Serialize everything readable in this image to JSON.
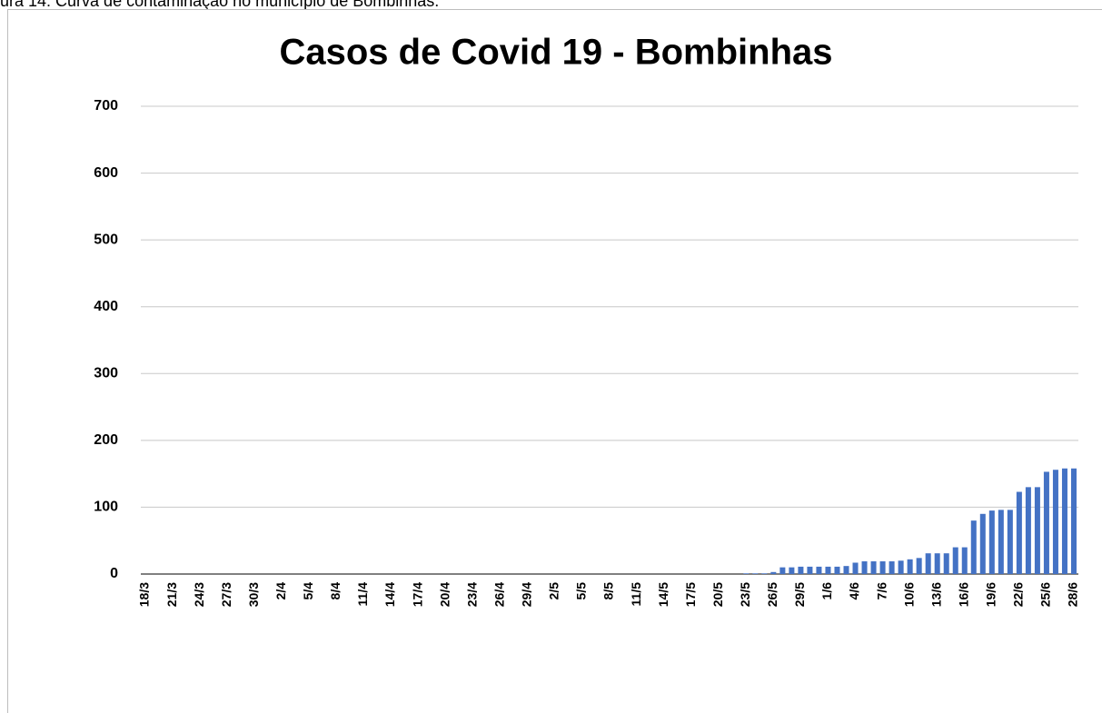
{
  "caption": "ura 14: Curva de contaminação no município de Bombinhas.",
  "chart_data": {
    "type": "bar",
    "title": "Casos de Covid 19 - Bombinhas",
    "categories": [
      "18/3",
      null,
      null,
      "21/3",
      null,
      null,
      "24/3",
      null,
      null,
      "27/3",
      null,
      null,
      "30/3",
      null,
      null,
      "2/4",
      null,
      null,
      "5/4",
      null,
      null,
      "8/4",
      null,
      null,
      "11/4",
      null,
      null,
      "14/4",
      null,
      null,
      "17/4",
      null,
      null,
      "20/4",
      null,
      null,
      "23/4",
      null,
      null,
      "26/4",
      null,
      null,
      "29/4",
      null,
      null,
      "2/5",
      null,
      null,
      "5/5",
      null,
      null,
      "8/5",
      null,
      null,
      "11/5",
      null,
      null,
      "14/5",
      null,
      null,
      "17/5",
      null,
      null,
      "20/5",
      null,
      null,
      "23/5",
      null,
      null,
      "26/5",
      null,
      null,
      "29/5",
      null,
      null,
      "1/6",
      null,
      null,
      "4/6",
      null,
      null,
      "7/6",
      null,
      null,
      "10/6",
      null,
      null,
      "13/6",
      null,
      null,
      "16/6",
      null,
      null,
      "19/6",
      null,
      null,
      "22/6",
      null,
      null,
      "25/6",
      null,
      null,
      "28/6"
    ],
    "values": [
      0,
      0,
      0,
      0,
      0,
      0,
      0,
      0,
      0,
      0,
      0,
      0,
      0,
      0,
      0,
      0,
      0,
      0,
      0,
      0,
      0,
      0,
      0,
      0,
      0,
      0,
      0,
      0,
      0,
      0,
      0,
      0,
      0,
      0,
      0,
      0,
      0,
      0,
      0,
      0,
      0,
      0,
      0,
      0,
      0,
      0,
      0,
      0,
      0,
      0,
      0,
      0,
      0,
      0,
      0,
      0,
      0,
      0,
      0,
      0,
      0,
      0,
      0,
      0,
      0,
      0,
      1,
      1,
      1,
      3,
      10,
      10,
      11,
      11,
      11,
      11,
      11,
      12,
      17,
      19,
      19,
      19,
      19,
      20,
      22,
      24,
      31,
      31,
      31,
      40,
      40,
      80,
      90,
      95,
      96,
      96,
      123,
      130,
      130,
      153,
      156,
      158,
      158
    ],
    "color": "#4472c4",
    "ylim": [
      0,
      700
    ],
    "yticks": [
      0,
      100,
      200,
      300,
      400,
      500,
      600,
      700
    ],
    "grid": true
  }
}
